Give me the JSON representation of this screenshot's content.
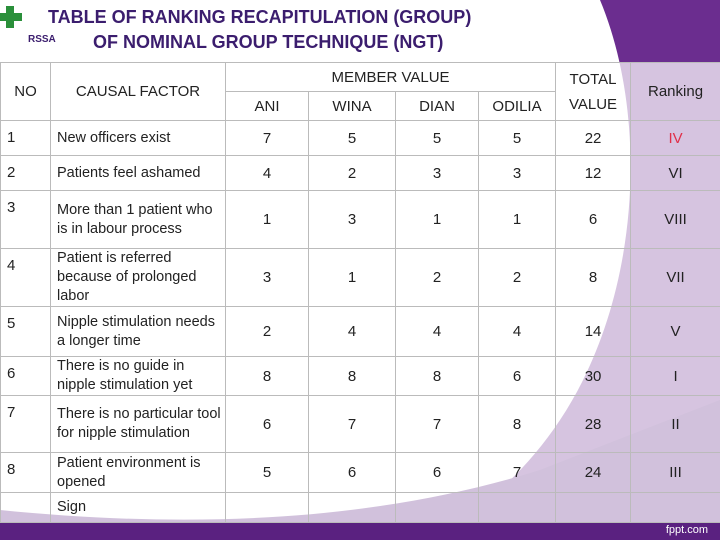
{
  "header": {
    "title": [
      "TABLE  OF RANKING RECAPITULATION (GROUP)",
      "OF NOMINAL GROUP TECHNIQUE (NGT)"
    ],
    "logo": "RSSA"
  },
  "table": {
    "headers": {
      "no": "NO",
      "factor": "CAUSAL FACTOR",
      "member": "MEMBER VALUE",
      "members": [
        "ANI",
        "WINA",
        "DIAN",
        "ODILIA"
      ],
      "total": [
        "TOTAL",
        "VALUE"
      ],
      "ranking": "Ranking"
    },
    "rows": [
      [
        1,
        "New officers exist",
        7,
        5,
        5,
        5,
        22,
        "IV"
      ],
      [
        2,
        "Patients feel ashamed",
        4,
        2,
        3,
        3,
        12,
        "VI"
      ],
      [
        3,
        "More than 1 patient who is in labour process",
        1,
        3,
        1,
        1,
        6,
        "VIII"
      ],
      [
        4,
        "Patient is referred because of prolonged labor",
        3,
        1,
        2,
        2,
        8,
        "VII"
      ],
      [
        5,
        "Nipple stimulation needs a longer time",
        2,
        4,
        4,
        4,
        14,
        "V"
      ],
      [
        6,
        "There is no guide in nipple stimulation yet",
        8,
        8,
        8,
        6,
        30,
        "I"
      ],
      [
        7,
        "There is no particular tool for nipple stimulation",
        6,
        7,
        7,
        8,
        28,
        "II"
      ],
      [
        8,
        "Patient environment is opened",
        5,
        6,
        6,
        7,
        24,
        "III"
      ]
    ],
    "sign": "Sign"
  },
  "footer": "fppt.com"
}
